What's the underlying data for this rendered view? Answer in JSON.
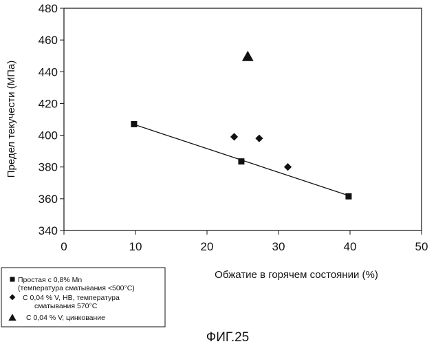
{
  "chart_data": {
    "type": "scatter",
    "title": "",
    "xlabel": "Обжатие в горячем состоянии (%)",
    "ylabel": "Предел текучести (МПа)",
    "xlim": [
      0,
      50
    ],
    "ylim": [
      340,
      480
    ],
    "x_ticks": [
      "0",
      "10",
      "20",
      "30",
      "40",
      "50"
    ],
    "y_ticks": [
      "340",
      "360",
      "380",
      "400",
      "420",
      "440",
      "460",
      "480"
    ],
    "grid": false,
    "legend_position": "bottom-left",
    "series": [
      {
        "name": "Простая с 0,8% Mn (температура сматывания <500°C)",
        "name_lines": [
          "Простая с 0,8% Mn",
          "(температура сматывания <500°C)"
        ],
        "marker": "square",
        "points": [
          [
            9.8,
            407
          ],
          [
            24.8,
            383.5
          ],
          [
            39.8,
            361.5
          ]
        ]
      },
      {
        "name": "С 0,04 % V, НВ, температура сматывания 570°C",
        "name_lines": [
          "С 0,04 % V, НВ, температура",
          "сматывания 570°C"
        ],
        "marker": "diamond",
        "points": [
          [
            23.8,
            399
          ],
          [
            27.3,
            398
          ],
          [
            31.3,
            380
          ]
        ]
      },
      {
        "name": "С 0,04 % V, цинкование",
        "name_lines": [
          "С 0,04 % V, цинкование"
        ],
        "marker": "triangle",
        "points": [
          [
            25.7,
            450
          ]
        ]
      }
    ],
    "trendline": {
      "series": "Простая с 0,8% Mn (температура сматывания <500°C)",
      "x": [
        9.8,
        39.8
      ],
      "y": [
        406.8,
        362
      ]
    },
    "colors": {
      "marker": "#111111",
      "axis": "#111111",
      "background": "#ffffff"
    }
  },
  "caption": "ФИГ.25"
}
